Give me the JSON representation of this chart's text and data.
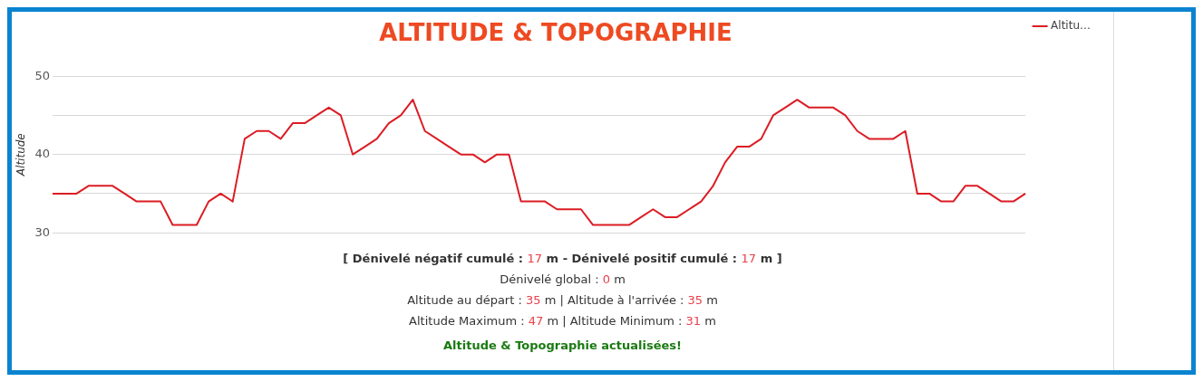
{
  "chart_data": {
    "type": "line",
    "title": "ALTITUDE & TOPOGRAPHIE",
    "ylabel": "Altitude",
    "categories": [
      null,
      null,
      null,
      null,
      null,
      null,
      null,
      null,
      null,
      null,
      null,
      null,
      null,
      null,
      null,
      null,
      null,
      null,
      null,
      null,
      null,
      null,
      null,
      null,
      null,
      null,
      null,
      null,
      null,
      null,
      null,
      null,
      null,
      null,
      null,
      null,
      null,
      null,
      null,
      null,
      null,
      null,
      null,
      null,
      null,
      null,
      null,
      null,
      null,
      null,
      null,
      null,
      null,
      null,
      null,
      null,
      null,
      null,
      null,
      null,
      null,
      null,
      null,
      null,
      null,
      null,
      null,
      null,
      null,
      null,
      null,
      null,
      null,
      null,
      null,
      null,
      null,
      null,
      null,
      null,
      null,
      null
    ],
    "series": [
      {
        "name": "Altitu…",
        "color": "#dc1c24",
        "values": [
          35,
          35,
          35,
          36,
          36,
          36,
          35,
          34,
          34,
          34,
          31,
          31,
          31,
          34,
          35,
          34,
          42,
          43,
          43,
          42,
          44,
          44,
          45,
          46,
          45,
          40,
          41,
          42,
          44,
          45,
          47,
          43,
          42,
          41,
          40,
          40,
          39,
          40,
          40,
          34,
          34,
          34,
          33,
          33,
          33,
          31,
          31,
          31,
          31,
          32,
          33,
          32,
          32,
          33,
          34,
          36,
          39,
          41,
          41,
          42,
          45,
          46,
          47,
          46,
          46,
          46,
          45,
          43,
          42,
          42,
          42,
          43,
          35,
          35,
          34,
          34,
          36,
          36,
          35,
          34,
          34,
          35
        ]
      }
    ],
    "ylim": [
      30,
      50
    ],
    "yticks": [
      30,
      {
        "value": 35,
        "label": null
      },
      40,
      {
        "value": 45,
        "label": null
      },
      50
    ],
    "grid": "y",
    "tick_labels": "y",
    "legend": "right",
    "marker": "none",
    "line_style": "solid",
    "annotations": [
      "[ Dénivelé négatif cumulé : 17 m - Dénivelé positif cumulé : 17  m ]",
      "Dénivelé global : 0  m",
      "Altitude au départ : 35  m | Altitude à l'arrivée : 35  m",
      "Altitude Maximum : 47  m | Altitude Minimum : 31  m",
      "Altitude & Topographie actualisées!"
    ]
  }
}
